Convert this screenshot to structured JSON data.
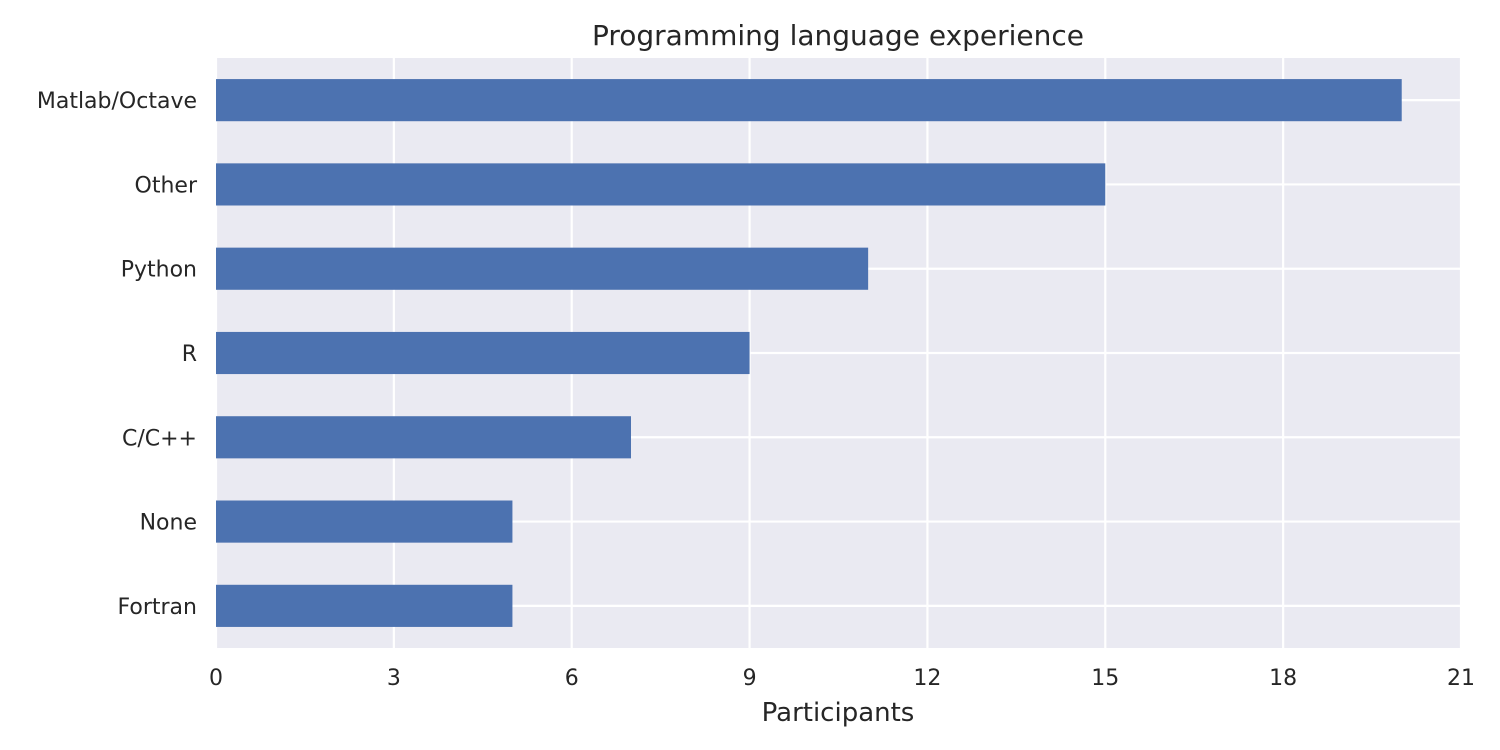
{
  "chart_data": {
    "type": "bar",
    "orientation": "horizontal",
    "title": "Programming language experience",
    "xlabel": "Participants",
    "ylabel": "",
    "categories": [
      "Matlab/Octave",
      "Other",
      "Python",
      "R",
      "C/C++",
      "None",
      "Fortran"
    ],
    "values": [
      20,
      15,
      11,
      9,
      7,
      5,
      5
    ],
    "xlim": [
      0,
      21
    ],
    "xticks": [
      "0",
      "3",
      "6",
      "9",
      "12",
      "15",
      "18",
      "21"
    ],
    "grid": true,
    "legend": "none",
    "colors": {
      "bar": "#4c72b0",
      "plot_background": "#eaeaf2",
      "grid": "#ffffff",
      "text": "#262626"
    }
  }
}
